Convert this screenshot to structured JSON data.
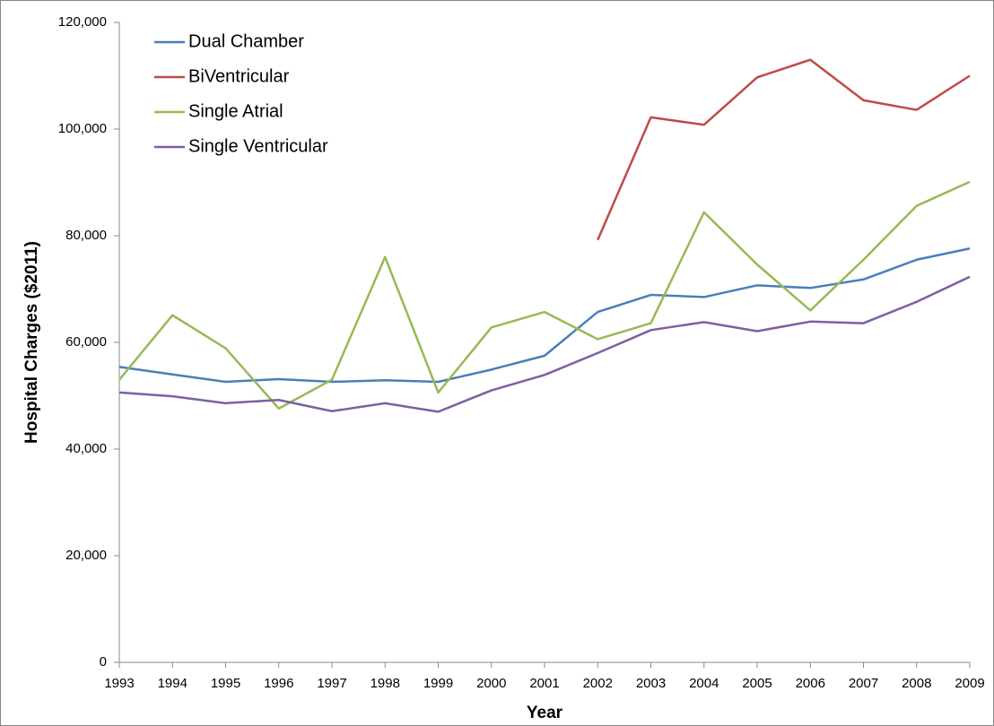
{
  "chart_data": {
    "type": "line",
    "x_label": "Year",
    "y_label": "Hospital Charges ($2011)",
    "categories": [
      "1993",
      "1994",
      "1995",
      "1996",
      "1997",
      "1998",
      "1999",
      "2000",
      "2001",
      "2002",
      "2003",
      "2004",
      "2005",
      "2006",
      "2007",
      "2008",
      "2009"
    ],
    "series": [
      {
        "name": "Dual Chamber",
        "color": "#4a7ebb",
        "values": [
          55400,
          54000,
          52600,
          53100,
          52600,
          52900,
          52600,
          54900,
          57500,
          65700,
          68900,
          68500,
          70700,
          70200,
          71800,
          75500,
          77600
        ]
      },
      {
        "name": "BiVentricular",
        "color": "#be4b48",
        "values": [
          null,
          null,
          null,
          null,
          null,
          null,
          null,
          null,
          null,
          79200,
          102200,
          100800,
          109700,
          113000,
          105400,
          103600,
          110000
        ]
      },
      {
        "name": "Single Atrial",
        "color": "#98b954",
        "values": [
          53000,
          65100,
          58900,
          47600,
          53000,
          76000,
          50600,
          62800,
          65700,
          60600,
          63600,
          84400,
          74600,
          66000,
          75500,
          85600,
          90100
        ]
      },
      {
        "name": "Single Ventricular",
        "color": "#7d60a0",
        "values": [
          50600,
          49900,
          48600,
          49200,
          47100,
          48600,
          47000,
          51000,
          53900,
          58000,
          62300,
          63800,
          62100,
          63900,
          63600,
          67600,
          72300
        ]
      }
    ],
    "ylim": [
      0,
      120000
    ],
    "yticks": [
      0,
      {
        "value": 20000,
        "label": "20,000"
      },
      {
        "value": 40000,
        "label": "40,000"
      },
      {
        "value": 60000,
        "label": "60,000"
      },
      {
        "value": 80000,
        "label": "80,000"
      },
      {
        "value": 100000,
        "label": "100,000"
      },
      {
        "value": 120000,
        "label": "120,000"
      }
    ],
    "grid": false,
    "legend": "top-left"
  }
}
